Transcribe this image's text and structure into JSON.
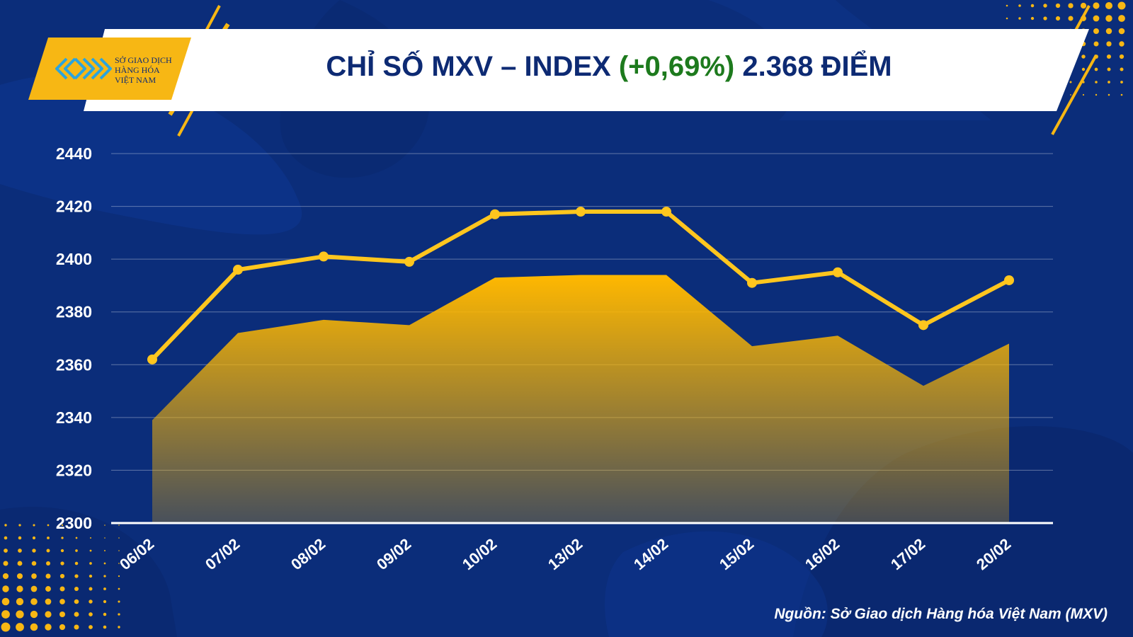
{
  "header": {
    "title_part1": "CHỈ SỐ MXV – INDEX ",
    "title_change": "(+0,69%)",
    "title_part2": " 2.368 ĐIỂM"
  },
  "logo": {
    "line1": "SỞ GIAO DỊCH",
    "line2": "HÀNG HÓA",
    "line3": "VIỆT NAM"
  },
  "source": "Nguồn: Sở Giao dịch Hàng hóa Việt Nam (MXV)",
  "colors": {
    "background": "#0b2d7a",
    "accent": "#f7b714",
    "title": "#0d2a73",
    "change_positive": "#1d7a1d",
    "line": "#ffc61e"
  },
  "chart_data": {
    "type": "area",
    "categories": [
      "06/02",
      "07/02",
      "08/02",
      "09/02",
      "10/02",
      "13/02",
      "14/02",
      "15/02",
      "16/02",
      "17/02",
      "20/02"
    ],
    "values": [
      2339,
      2372,
      2377,
      2375,
      2393,
      2394,
      2394,
      2367,
      2371,
      2352,
      2368
    ],
    "line_values": [
      2362,
      2396,
      2401,
      2399,
      2417,
      2418,
      2418,
      2391,
      2395,
      2375,
      2392
    ],
    "ylim": [
      2300,
      2440
    ],
    "yticks": [
      "2300",
      "2320",
      "2340",
      "2360",
      "2380",
      "2400",
      "2420",
      "2440"
    ],
    "grid": true,
    "title": "",
    "xlabel": "",
    "ylabel": ""
  }
}
